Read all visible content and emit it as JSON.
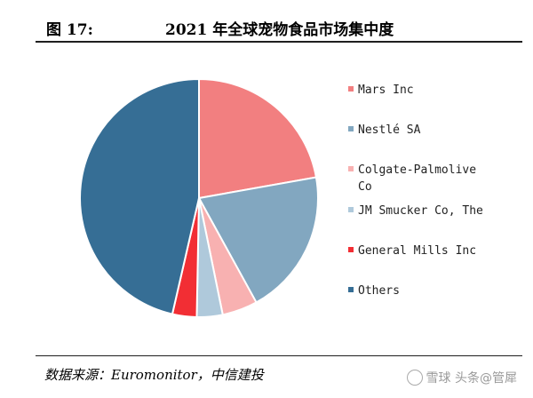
{
  "figure": {
    "label": "图 17:",
    "title": "2021 年全球宠物食品市场集中度"
  },
  "source": "数据来源：Euromonitor，中信建投",
  "watermark": "雪球 头条@管犀",
  "colors": {
    "mars": "#F27F80",
    "nestle": "#82A7C0",
    "colgate": "#F8B1B1",
    "jm": "#AFC9DB",
    "general_mills": "#F22E34",
    "others": "#366E95"
  },
  "chart_data": {
    "type": "pie",
    "title": "",
    "start_angle_deg": 0,
    "direction": "clockwise",
    "legend_position": "right",
    "slices": [
      {
        "label": "Mars Inc",
        "value": 22.2,
        "color_key": "mars"
      },
      {
        "label": "Nestlé SA",
        "value": 19.8,
        "color_key": "nestle"
      },
      {
        "label": "Colgate-Palmolive Co",
        "value": 4.8,
        "color_key": "colgate"
      },
      {
        "label": "JM Smucker Co, The",
        "value": 3.5,
        "color_key": "jm"
      },
      {
        "label": "General Mills Inc",
        "value": 3.3,
        "color_key": "general_mills"
      },
      {
        "label": "Others",
        "value": 46.4,
        "color_key": "others"
      }
    ]
  },
  "legend": [
    {
      "line1": "Mars Inc",
      "line2": "",
      "color_key": "mars"
    },
    {
      "line1": "Nestlé SA",
      "line2": "",
      "color_key": "nestle"
    },
    {
      "line1": "Colgate-Palmolive",
      "line2": "Co",
      "color_key": "colgate"
    },
    {
      "line1": "JM Smucker Co, The",
      "line2": "",
      "color_key": "jm"
    },
    {
      "line1": "General Mills Inc",
      "line2": "",
      "color_key": "general_mills"
    },
    {
      "line1": "Others",
      "line2": "",
      "color_key": "others"
    }
  ]
}
